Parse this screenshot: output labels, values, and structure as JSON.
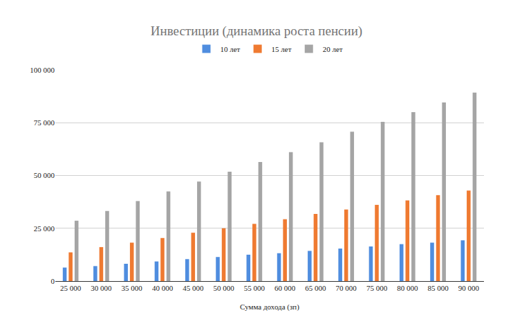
{
  "chart_data": {
    "type": "bar",
    "title": "Инвестиции (динамика роста пенсии)",
    "x_label": "Сумма дохода (зп)",
    "categories": [
      "25 000",
      "30 000",
      "35 000",
      "40 000",
      "45 000",
      "50 000",
      "55 000",
      "60 000",
      "65 000",
      "70 000",
      "75 000",
      "80 000",
      "85 000",
      "90 000"
    ],
    "series": [
      {
        "name": "10 лет",
        "color": "#4f8ddf",
        "values": [
          6400,
          7100,
          8200,
          9300,
          10400,
          11400,
          12500,
          13200,
          14300,
          15400,
          16400,
          17500,
          18200,
          19300
        ]
      },
      {
        "name": "15 лет",
        "color": "#ef7a31",
        "values": [
          13600,
          16100,
          18200,
          20400,
          22900,
          25000,
          27100,
          29300,
          31800,
          33900,
          36100,
          38200,
          40700,
          42900
        ]
      },
      {
        "name": "20 лет",
        "color": "#a5a5a5",
        "values": [
          28600,
          33200,
          37900,
          42500,
          47100,
          51800,
          56400,
          61100,
          65700,
          70700,
          75400,
          80000,
          84600,
          89300
        ]
      }
    ],
    "ylim": [
      0,
      100000
    ],
    "yticks": [
      0,
      {
        "value": 25000,
        "label": "25 000"
      },
      {
        "value": 50000,
        "label": "50 000"
      },
      {
        "value": 75000,
        "label": "75 000"
      },
      {
        "value": 100000,
        "label": "100 000"
      }
    ],
    "grid": true,
    "legend": "top"
  }
}
